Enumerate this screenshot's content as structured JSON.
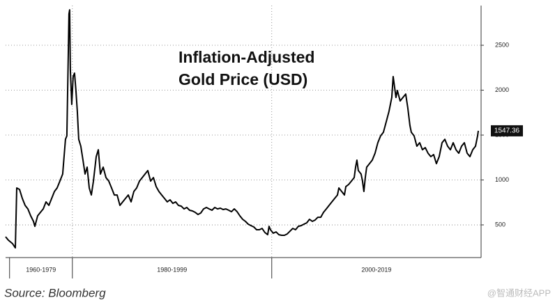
{
  "chart_data": {
    "type": "line",
    "title": [
      "Inflation-Adjusted",
      "Gold Price (USD)"
    ],
    "source": "Source: Bloomberg",
    "watermark": "@智通财经APP",
    "color": "#000000",
    "grid": true,
    "xlim": [
      1973.3,
      2021.0
    ],
    "xticks": [
      1973.7,
      1980,
      2000
    ],
    "x_period_labels": [
      "1960-1979",
      "1980-1999",
      "2000-2019"
    ],
    "ylim": [
      136,
      2942
    ],
    "yticks": [
      500,
      1000,
      1500,
      2000,
      2500
    ],
    "x": [
      1973.3,
      1973.58,
      1974.0,
      1974.28,
      1974.42,
      1974.7,
      1974.98,
      1975.26,
      1975.54,
      1975.82,
      1976.1,
      1976.24,
      1976.52,
      1976.8,
      1977.08,
      1977.36,
      1977.64,
      1977.92,
      1978.2,
      1978.47,
      1978.75,
      1979.03,
      1979.31,
      1979.45,
      1979.59,
      1979.66,
      1979.73,
      1979.8,
      1979.94,
      1980.08,
      1980.22,
      1980.36,
      1980.5,
      1980.64,
      1980.85,
      1981.06,
      1981.27,
      1981.48,
      1981.69,
      1981.9,
      1982.11,
      1982.39,
      1982.6,
      1982.81,
      1983.09,
      1983.37,
      1983.65,
      1983.93,
      1984.21,
      1984.49,
      1984.77,
      1985.05,
      1985.33,
      1985.61,
      1985.89,
      1986.17,
      1986.45,
      1986.73,
      1987.01,
      1987.29,
      1987.57,
      1987.85,
      1988.13,
      1988.41,
      1988.68,
      1988.96,
      1989.24,
      1989.52,
      1989.8,
      1990.08,
      1990.36,
      1990.64,
      1990.92,
      1991.2,
      1991.48,
      1991.76,
      1992.04,
      1992.32,
      1992.6,
      1992.88,
      1993.16,
      1993.44,
      1993.72,
      1994.0,
      1994.28,
      1994.56,
      1994.84,
      1995.12,
      1995.4,
      1995.68,
      1995.96,
      1996.24,
      1996.52,
      1996.8,
      1997.08,
      1997.36,
      1997.64,
      1997.92,
      1998.2,
      1998.48,
      1998.76,
      1999.03,
      1999.31,
      1999.59,
      1999.73,
      1999.87,
      2000.15,
      2000.43,
      2000.71,
      2000.99,
      2001.27,
      2001.55,
      2001.83,
      2002.11,
      2002.39,
      2002.67,
      2002.95,
      2003.23,
      2003.51,
      2003.79,
      2004.07,
      2004.35,
      2004.63,
      2004.91,
      2005.19,
      2005.47,
      2005.75,
      2006.03,
      2006.31,
      2006.59,
      2006.73,
      2007.01,
      2007.29,
      2007.43,
      2007.71,
      2007.99,
      2008.27,
      2008.41,
      2008.54,
      2008.68,
      2008.96,
      2009.1,
      2009.24,
      2009.38,
      2009.52,
      2009.8,
      2010.08,
      2010.36,
      2010.64,
      2010.92,
      2011.2,
      2011.48,
      2011.76,
      2012.04,
      2012.18,
      2012.32,
      2012.46,
      2012.6,
      2012.88,
      2013.16,
      2013.44,
      2013.65,
      2013.86,
      2014.0,
      2014.28,
      2014.56,
      2014.84,
      2015.12,
      2015.4,
      2015.68,
      2015.96,
      2016.24,
      2016.52,
      2016.8,
      2017.08,
      2017.36,
      2017.64,
      2017.92,
      2018.2,
      2018.48,
      2018.76,
      2019.04,
      2019.32,
      2019.6,
      2019.88,
      2020.16,
      2020.44,
      2020.65,
      2020.72
    ],
    "values": [
      368,
      330,
      291,
      244,
      911,
      895,
      795,
      717,
      678,
      601,
      539,
      484,
      601,
      640,
      678,
      756,
      717,
      795,
      872,
      911,
      988,
      1066,
      1453,
      1492,
      2384,
      2849,
      2895,
      2229,
      1841,
      2151,
      2190,
      1996,
      1764,
      1453,
      1376,
      1221,
      1066,
      1143,
      911,
      833,
      988,
      1260,
      1337,
      1066,
      1143,
      1027,
      988,
      911,
      833,
      833,
      717,
      756,
      795,
      833,
      756,
      872,
      911,
      988,
      1027,
      1066,
      1105,
      988,
      1027,
      926,
      872,
      833,
      795,
      756,
      779,
      740,
      756,
      717,
      709,
      678,
      694,
      663,
      655,
      640,
      616,
      632,
      678,
      694,
      678,
      663,
      694,
      678,
      686,
      671,
      678,
      663,
      647,
      678,
      647,
      601,
      562,
      539,
      508,
      492,
      477,
      446,
      446,
      461,
      415,
      391,
      484,
      446,
      407,
      422,
      391,
      384,
      384,
      399,
      430,
      461,
      446,
      484,
      492,
      508,
      523,
      562,
      539,
      554,
      585,
      585,
      640,
      678,
      717,
      756,
      795,
      833,
      911,
      872,
      833,
      926,
      950,
      988,
      1027,
      1143,
      1221,
      1105,
      1066,
      988,
      872,
      1027,
      1143,
      1182,
      1221,
      1298,
      1415,
      1492,
      1531,
      1647,
      1764,
      1919,
      2151,
      2035,
      1919,
      1996,
      1880,
      1919,
      1957,
      1802,
      1609,
      1531,
      1492,
      1376,
      1415,
      1337,
      1360,
      1298,
      1260,
      1283,
      1182,
      1260,
      1415,
      1453,
      1376,
      1337,
      1415,
      1337,
      1298,
      1376,
      1415,
      1298,
      1260,
      1337,
      1376,
      1492,
      1547.36
    ]
  }
}
